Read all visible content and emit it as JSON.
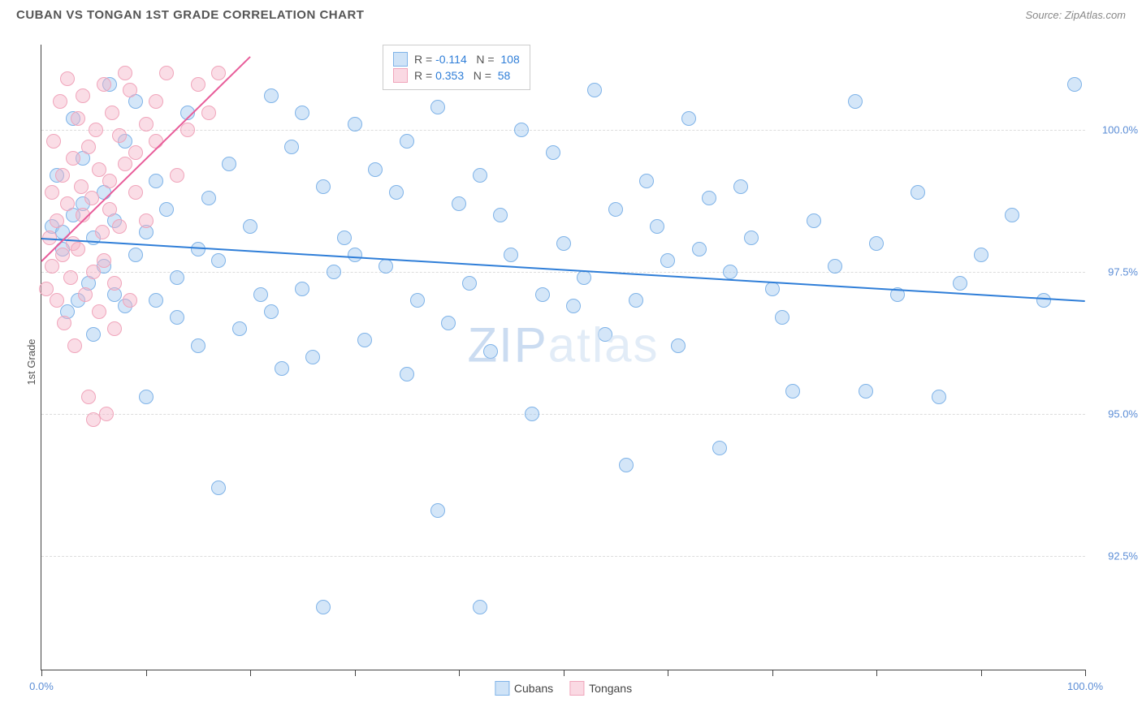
{
  "header": {
    "title": "CUBAN VS TONGAN 1ST GRADE CORRELATION CHART",
    "source": "Source: ZipAtlas.com"
  },
  "watermark": {
    "part1": "ZIP",
    "part2": "atlas"
  },
  "chart": {
    "type": "scatter",
    "ylabel": "1st Grade",
    "xlim": [
      0,
      100
    ],
    "ylim": [
      90.5,
      101.5
    ],
    "ytick_values": [
      92.5,
      95.0,
      97.5,
      100.0
    ],
    "ytick_labels": [
      "92.5%",
      "95.0%",
      "97.5%",
      "100.0%"
    ],
    "xtick_values": [
      0,
      10,
      20,
      30,
      40,
      50,
      60,
      70,
      80,
      90,
      100
    ],
    "xtick_labels_shown": {
      "0": "0.0%",
      "100": "100.0%"
    },
    "grid_color": "#dddddd",
    "background_color": "#ffffff",
    "marker_radius": 8,
    "marker_stroke_width": 1.5,
    "series": [
      {
        "name": "Cubans",
        "fill": "rgba(160, 200, 240, 0.45)",
        "stroke": "#7fb3e8",
        "trend_color": "#2f7ed8",
        "R": "-0.114",
        "N": "108",
        "trend": {
          "x1": 0,
          "y1": 98.1,
          "x2": 100,
          "y2": 97.0
        },
        "points": [
          [
            1,
            98.3
          ],
          [
            1.5,
            99.2
          ],
          [
            2,
            97.9
          ],
          [
            2,
            98.2
          ],
          [
            2.5,
            96.8
          ],
          [
            3,
            98.5
          ],
          [
            3,
            100.2
          ],
          [
            3.5,
            97.0
          ],
          [
            4,
            98.7
          ],
          [
            4,
            99.5
          ],
          [
            4.5,
            97.3
          ],
          [
            5,
            98.1
          ],
          [
            5,
            96.4
          ],
          [
            6,
            98.9
          ],
          [
            6,
            97.6
          ],
          [
            6.5,
            100.8
          ],
          [
            7,
            97.1
          ],
          [
            7,
            98.4
          ],
          [
            8,
            99.8
          ],
          [
            8,
            96.9
          ],
          [
            9,
            100.5
          ],
          [
            9,
            97.8
          ],
          [
            10,
            98.2
          ],
          [
            10,
            95.3
          ],
          [
            11,
            97.0
          ],
          [
            11,
            99.1
          ],
          [
            12,
            98.6
          ],
          [
            13,
            97.4
          ],
          [
            13,
            96.7
          ],
          [
            14,
            100.3
          ],
          [
            15,
            97.9
          ],
          [
            15,
            96.2
          ],
          [
            16,
            98.8
          ],
          [
            17,
            97.7
          ],
          [
            17,
            93.7
          ],
          [
            18,
            99.4
          ],
          [
            19,
            96.5
          ],
          [
            20,
            98.3
          ],
          [
            21,
            97.1
          ],
          [
            22,
            100.6
          ],
          [
            22,
            96.8
          ],
          [
            23,
            95.8
          ],
          [
            24,
            99.7
          ],
          [
            25,
            97.2
          ],
          [
            25,
            100.3
          ],
          [
            26,
            96.0
          ],
          [
            27,
            99.0
          ],
          [
            27,
            91.6
          ],
          [
            28,
            97.5
          ],
          [
            29,
            98.1
          ],
          [
            30,
            100.1
          ],
          [
            30,
            97.8
          ],
          [
            31,
            96.3
          ],
          [
            32,
            99.3
          ],
          [
            33,
            97.6
          ],
          [
            34,
            98.9
          ],
          [
            35,
            95.7
          ],
          [
            35,
            99.8
          ],
          [
            36,
            97.0
          ],
          [
            38,
            100.4
          ],
          [
            38,
            93.3
          ],
          [
            39,
            96.6
          ],
          [
            40,
            98.7
          ],
          [
            41,
            97.3
          ],
          [
            42,
            99.2
          ],
          [
            42,
            91.6
          ],
          [
            43,
            96.1
          ],
          [
            44,
            98.5
          ],
          [
            45,
            97.8
          ],
          [
            46,
            100.0
          ],
          [
            47,
            95.0
          ],
          [
            48,
            97.1
          ],
          [
            49,
            99.6
          ],
          [
            50,
            98.0
          ],
          [
            51,
            96.9
          ],
          [
            52,
            97.4
          ],
          [
            53,
            100.7
          ],
          [
            54,
            96.4
          ],
          [
            55,
            98.6
          ],
          [
            56,
            94.1
          ],
          [
            57,
            97.0
          ],
          [
            58,
            99.1
          ],
          [
            59,
            98.3
          ],
          [
            60,
            97.7
          ],
          [
            61,
            96.2
          ],
          [
            62,
            100.2
          ],
          [
            63,
            97.9
          ],
          [
            64,
            98.8
          ],
          [
            65,
            94.4
          ],
          [
            66,
            97.5
          ],
          [
            67,
            99.0
          ],
          [
            68,
            98.1
          ],
          [
            70,
            97.2
          ],
          [
            71,
            96.7
          ],
          [
            72,
            95.4
          ],
          [
            74,
            98.4
          ],
          [
            76,
            97.6
          ],
          [
            78,
            100.5
          ],
          [
            79,
            95.4
          ],
          [
            80,
            98.0
          ],
          [
            82,
            97.1
          ],
          [
            84,
            98.9
          ],
          [
            86,
            95.3
          ],
          [
            88,
            97.3
          ],
          [
            90,
            97.8
          ],
          [
            93,
            98.5
          ],
          [
            96,
            97.0
          ],
          [
            99,
            100.8
          ]
        ]
      },
      {
        "name": "Tongans",
        "fill": "rgba(245, 180, 200, 0.45)",
        "stroke": "#f0a5bb",
        "trend_color": "#e85d9a",
        "R": "0.353",
        "N": "58",
        "trend": {
          "x1": 0,
          "y1": 97.7,
          "x2": 20,
          "y2": 101.3
        },
        "points": [
          [
            0.5,
            97.2
          ],
          [
            0.8,
            98.1
          ],
          [
            1,
            97.6
          ],
          [
            1,
            98.9
          ],
          [
            1.2,
            99.8
          ],
          [
            1.5,
            97.0
          ],
          [
            1.5,
            98.4
          ],
          [
            1.8,
            100.5
          ],
          [
            2,
            97.8
          ],
          [
            2,
            99.2
          ],
          [
            2.2,
            96.6
          ],
          [
            2.5,
            98.7
          ],
          [
            2.5,
            100.9
          ],
          [
            2.8,
            97.4
          ],
          [
            3,
            99.5
          ],
          [
            3,
            98.0
          ],
          [
            3.2,
            96.2
          ],
          [
            3.5,
            100.2
          ],
          [
            3.5,
            97.9
          ],
          [
            3.8,
            99.0
          ],
          [
            4,
            98.5
          ],
          [
            4,
            100.6
          ],
          [
            4.2,
            97.1
          ],
          [
            4.5,
            99.7
          ],
          [
            4.5,
            95.3
          ],
          [
            4.8,
            98.8
          ],
          [
            5,
            94.9
          ],
          [
            5,
            97.5
          ],
          [
            5.2,
            100.0
          ],
          [
            5.5,
            99.3
          ],
          [
            5.5,
            96.8
          ],
          [
            5.8,
            98.2
          ],
          [
            6,
            100.8
          ],
          [
            6,
            97.7
          ],
          [
            6.2,
            95.0
          ],
          [
            6.5,
            99.1
          ],
          [
            6.5,
            98.6
          ],
          [
            6.8,
            100.3
          ],
          [
            7,
            97.3
          ],
          [
            7,
            96.5
          ],
          [
            7.5,
            99.9
          ],
          [
            7.5,
            98.3
          ],
          [
            8,
            101.0
          ],
          [
            8,
            99.4
          ],
          [
            8.5,
            97.0
          ],
          [
            8.5,
            100.7
          ],
          [
            9,
            98.9
          ],
          [
            9,
            99.6
          ],
          [
            10,
            100.1
          ],
          [
            10,
            98.4
          ],
          [
            11,
            99.8
          ],
          [
            11,
            100.5
          ],
          [
            12,
            101.0
          ],
          [
            13,
            99.2
          ],
          [
            14,
            100.0
          ],
          [
            15,
            100.8
          ],
          [
            16,
            100.3
          ],
          [
            17,
            101.0
          ]
        ]
      }
    ]
  },
  "legend_top": {
    "rows": [
      {
        "swatch_fill": "rgba(160,200,240,0.5)",
        "swatch_stroke": "#7fb3e8",
        "R_label": "R =",
        "R_val": "-0.114",
        "N_label": "N =",
        "N_val": "108"
      },
      {
        "swatch_fill": "rgba(245,180,200,0.5)",
        "swatch_stroke": "#f0a5bb",
        "R_label": "R =",
        "R_val": "0.353",
        "N_label": "N =",
        "N_val": "58"
      }
    ]
  },
  "legend_bottom": {
    "items": [
      {
        "fill": "rgba(160,200,240,0.5)",
        "stroke": "#7fb3e8",
        "label": "Cubans"
      },
      {
        "fill": "rgba(245,180,200,0.5)",
        "stroke": "#f0a5bb",
        "label": "Tongans"
      }
    ]
  }
}
